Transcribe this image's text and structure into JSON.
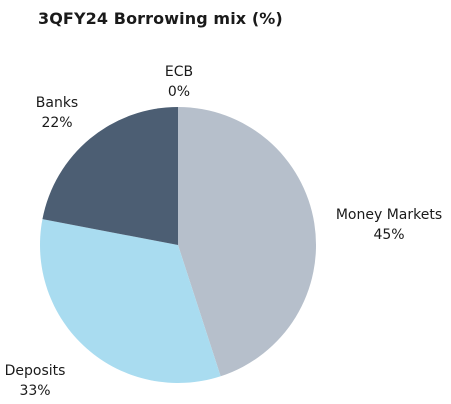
{
  "chart_data": {
    "type": "pie",
    "title": "3QFY24 Borrowing mix (%)",
    "slices": [
      {
        "label": "Money Markets",
        "value": 45,
        "value_label": "45%",
        "color": "#b6bfcb"
      },
      {
        "label": "Deposits",
        "value": 33,
        "value_label": "33%",
        "color": "#a9dcf0"
      },
      {
        "label": "Banks",
        "value": 22,
        "value_label": "22%",
        "color": "#4c5e73"
      },
      {
        "label": "ECB",
        "value": 0,
        "value_label": "0%",
        "color": "#1f3a5c"
      }
    ],
    "legend": "none (data labels outside slices)"
  }
}
